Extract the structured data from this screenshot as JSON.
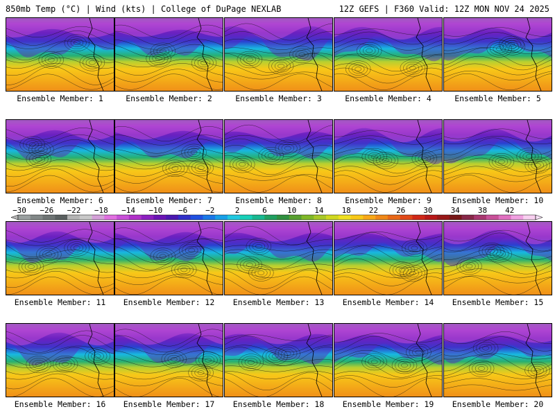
{
  "header": {
    "left": "850mb Temp (°C) | Wind (kts) | College of DuPage NEXLAB",
    "right": "12Z GEFS | F360 Valid: 12Z MON NOV 24 2025"
  },
  "members": [
    {
      "label": "Ensemble Member: 1"
    },
    {
      "label": "Ensemble Member: 2"
    },
    {
      "label": "Ensemble Member: 3"
    },
    {
      "label": "Ensemble Member: 4"
    },
    {
      "label": "Ensemble Member: 5"
    },
    {
      "label": "Ensemble Member: 6"
    },
    {
      "label": "Ensemble Member: 7"
    },
    {
      "label": "Ensemble Member: 8"
    },
    {
      "label": "Ensemble Member: 9"
    },
    {
      "label": "Ensemble Member: 10"
    },
    {
      "label": "Ensemble Member: 11"
    },
    {
      "label": "Ensemble Member: 12"
    },
    {
      "label": "Ensemble Member: 13"
    },
    {
      "label": "Ensemble Member: 14"
    },
    {
      "label": "Ensemble Member: 15"
    },
    {
      "label": "Ensemble Member: 16"
    },
    {
      "label": "Ensemble Member: 17"
    },
    {
      "label": "Ensemble Member: 18"
    },
    {
      "label": "Ensemble Member: 19"
    },
    {
      "label": "Ensemble Member: 20"
    }
  ],
  "colorbar": {
    "tick_labels": [
      "−30",
      "−26",
      "−22",
      "−18",
      "−14",
      "−10",
      "−6",
      "−2",
      "2",
      "6",
      "10",
      "14",
      "18",
      "22",
      "26",
      "30",
      "34",
      "38",
      "42"
    ],
    "colors": [
      "#9aa0a0",
      "#828888",
      "#6e7474",
      "#5a6060",
      "#b4b4b4",
      "#c8c8c8",
      "#d4a0d8",
      "#e070e0",
      "#c850d8",
      "#b030c8",
      "#8c20c0",
      "#6a14b4",
      "#4a18b0",
      "#3030c8",
      "#2050e0",
      "#1a78e8",
      "#18a0e8",
      "#20c8e0",
      "#18d0b8",
      "#18b890",
      "#20a060",
      "#309040",
      "#58a030",
      "#80b828",
      "#a8c828",
      "#d0d820",
      "#f0e020",
      "#f8c818",
      "#f8a818",
      "#f08818",
      "#e86818",
      "#e04818",
      "#d02818",
      "#b81818",
      "#981818",
      "#781818",
      "#882848",
      "#a83870",
      "#c85098",
      "#e070c0",
      "#f0a0e0",
      "#f8d0f0"
    ]
  }
}
